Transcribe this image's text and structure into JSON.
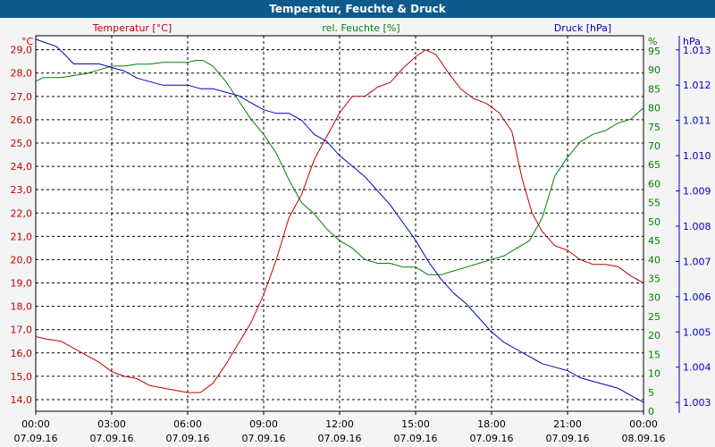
{
  "window": {
    "title": "Temperatur, Feuchte & Druck"
  },
  "colors": {
    "temperature": "#c00000",
    "humidity": "#008000",
    "pressure": "#0000c0",
    "grid": "#000000",
    "plot_bg": "#ffffff"
  },
  "chart_data": {
    "type": "line",
    "title": "Temperatur, Feuchte & Druck",
    "grid": true,
    "x": {
      "range": [
        0,
        24
      ],
      "ticks": [
        {
          "v": 0,
          "time": "00:00",
          "date": "07.09.16"
        },
        {
          "v": 3,
          "time": "03:00",
          "date": "07.09.16"
        },
        {
          "v": 6,
          "time": "06:00",
          "date": "07.09.16"
        },
        {
          "v": 9,
          "time": "09:00",
          "date": "07.09.16"
        },
        {
          "v": 12,
          "time": "12:00",
          "date": "07.09.16"
        },
        {
          "v": 15,
          "time": "15:00",
          "date": "07.09.16"
        },
        {
          "v": 18,
          "time": "18:00",
          "date": "07.09.16"
        },
        {
          "v": 21,
          "time": "21:00",
          "date": "07.09.16"
        },
        {
          "v": 24,
          "time": "00:00",
          "date": "08.09.16"
        }
      ]
    },
    "axes": {
      "temperature": {
        "label": "Temperatur [°C]",
        "unit": "°C",
        "range": [
          13.5,
          29.6
        ],
        "ticks": [
          "14,0",
          "15,0",
          "16,0",
          "17,0",
          "18,0",
          "19,0",
          "20,0",
          "21,0",
          "22,0",
          "23,0",
          "24,0",
          "25,0",
          "26,0",
          "27,0",
          "28,0",
          "29,0"
        ],
        "tick_values": [
          14,
          15,
          16,
          17,
          18,
          19,
          20,
          21,
          22,
          23,
          24,
          25,
          26,
          27,
          28,
          29
        ]
      },
      "humidity": {
        "label": "rel. Feuchte [%]",
        "unit": "%",
        "range": [
          0,
          99
        ],
        "ticks": [
          "0",
          "5",
          "10",
          "15",
          "20",
          "25",
          "30",
          "35",
          "40",
          "45",
          "50",
          "55",
          "60",
          "65",
          "70",
          "75",
          "80",
          "85",
          "90",
          "95"
        ],
        "tick_values": [
          0,
          5,
          10,
          15,
          20,
          25,
          30,
          35,
          40,
          45,
          50,
          55,
          60,
          65,
          70,
          75,
          80,
          85,
          90,
          95
        ]
      },
      "pressure": {
        "label": "Druck [hPa]",
        "unit": "hPa",
        "range": [
          1.00275,
          1.0134
        ],
        "ticks": [
          "1.003",
          "1.004",
          "1.005",
          "1.006",
          "1.007",
          "1.008",
          "1.009",
          "1.010",
          "1.011",
          "1.012",
          "1.013"
        ],
        "tick_values": [
          1.003,
          1.004,
          1.005,
          1.006,
          1.007,
          1.008,
          1.009,
          1.01,
          1.011,
          1.012,
          1.013
        ]
      }
    },
    "series": [
      {
        "name": "Temperatur [°C]",
        "axis": "temperature",
        "x": [
          0,
          0.4,
          1,
          1.5,
          2,
          2.5,
          3,
          3.5,
          4,
          4.5,
          5,
          5.5,
          6,
          6.5,
          7,
          7.5,
          8,
          8.5,
          9,
          9.5,
          10,
          10.5,
          11,
          11.5,
          12,
          12.5,
          13,
          13.5,
          14,
          14.5,
          15,
          15.4,
          15.8,
          16.3,
          16.8,
          17.3,
          17.8,
          18.3,
          18.8,
          19.2,
          19.6,
          20,
          20.5,
          21,
          21.5,
          22,
          22.5,
          23,
          23.5,
          24
        ],
        "values": [
          16.7,
          16.6,
          16.5,
          16.2,
          15.9,
          15.6,
          15.2,
          15.0,
          14.9,
          14.6,
          14.5,
          14.4,
          14.3,
          14.3,
          14.7,
          15.5,
          16.4,
          17.3,
          18.5,
          20.0,
          21.8,
          22.8,
          24.3,
          25.3,
          26.3,
          27.0,
          27.0,
          27.4,
          27.6,
          28.2,
          28.7,
          29.0,
          28.8,
          28.0,
          27.3,
          26.9,
          26.7,
          26.3,
          25.5,
          23.5,
          22.0,
          21.2,
          20.6,
          20.4,
          20.0,
          19.8,
          19.8,
          19.7,
          19.3,
          19.0
        ]
      },
      {
        "name": "rel. Feuchte [%]",
        "axis": "humidity",
        "x": [
          0,
          0.3,
          1,
          1.5,
          2,
          2.5,
          3,
          3.5,
          4,
          4.5,
          5,
          5.5,
          6,
          6.3,
          6.6,
          7,
          7.5,
          8,
          8.5,
          9,
          9.5,
          10,
          10.5,
          11,
          11.5,
          12,
          12.5,
          13,
          13.5,
          14,
          14.5,
          15,
          15.5,
          16,
          16.5,
          17,
          17.5,
          18,
          18.5,
          19,
          19.5,
          20,
          20.5,
          21,
          21.5,
          22,
          22.5,
          23,
          23.5,
          24
        ],
        "values": [
          87,
          88,
          88,
          88.5,
          89,
          90,
          91,
          91,
          91.5,
          91.5,
          92,
          92,
          92,
          92.5,
          92.5,
          91,
          87,
          82,
          77,
          73,
          68,
          61,
          55,
          52,
          48,
          45,
          43,
          40,
          39,
          39,
          38,
          38,
          36,
          36,
          37,
          38,
          39,
          40,
          41,
          43,
          45,
          51,
          62,
          67,
          71,
          73,
          74,
          76,
          77,
          80
        ]
      },
      {
        "name": "Druck [hPa]",
        "axis": "pressure",
        "x": [
          0,
          0.4,
          0.8,
          1.1,
          1.5,
          2,
          2.5,
          3,
          3.5,
          4,
          4.5,
          5,
          5.5,
          6,
          6.5,
          7,
          7.5,
          8,
          8.5,
          9,
          9.5,
          10,
          10.5,
          11,
          11.5,
          12,
          12.5,
          13,
          13.5,
          14,
          14.5,
          15,
          15.5,
          16,
          16.5,
          17,
          17.5,
          18,
          18.5,
          19,
          19.5,
          20,
          20.5,
          21,
          21.5,
          22,
          22.5,
          23,
          23.5,
          24
        ],
        "values": [
          1.0133,
          1.0132,
          1.0131,
          1.0129,
          1.0126,
          1.0126,
          1.0126,
          1.0125,
          1.0124,
          1.0122,
          1.0121,
          1.012,
          1.012,
          1.012,
          1.0119,
          1.0119,
          1.0118,
          1.0117,
          1.0115,
          1.0113,
          1.0112,
          1.0112,
          1.011,
          1.0106,
          1.0104,
          1.01,
          1.0097,
          1.0094,
          1.009,
          1.0086,
          1.0081,
          1.0076,
          1.007,
          1.0065,
          1.0061,
          1.0058,
          1.0054,
          1.005,
          1.0047,
          1.0045,
          1.0043,
          1.0041,
          1.004,
          1.0039,
          1.0037,
          1.0036,
          1.0035,
          1.0034,
          1.0032,
          1.003
        ]
      }
    ]
  }
}
